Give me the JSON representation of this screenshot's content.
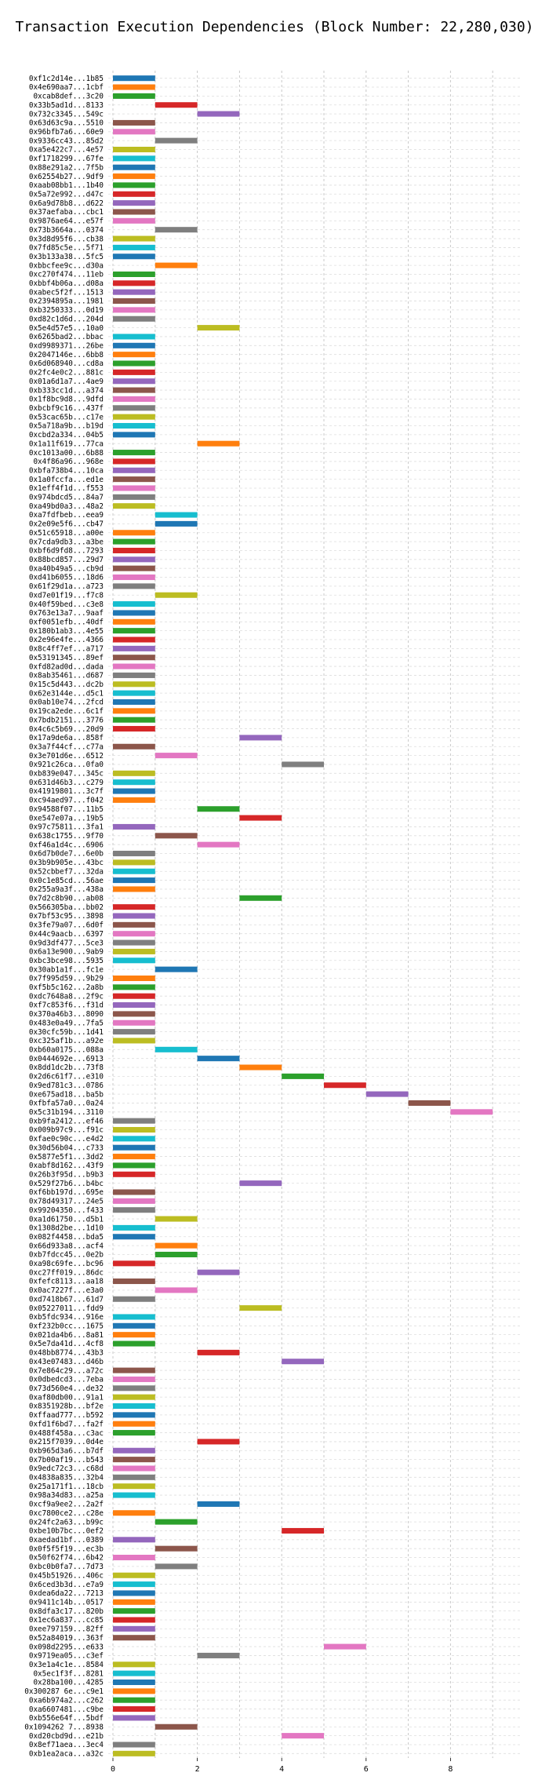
{
  "chart_data": {
    "type": "bar",
    "orientation": "horizontal",
    "subtype": "gantt",
    "title": "Transaction Execution Dependencies (Block Number: 22,280,030)",
    "xlabel": "",
    "ylabel": "",
    "xlim": [
      0,
      9.5
    ],
    "xticks": [
      0,
      2,
      4,
      6,
      8
    ],
    "grid": "x-dashed",
    "palette": [
      "#1f77b4",
      "#ff7f0e",
      "#2ca02c",
      "#d62728",
      "#9467bd",
      "#8c564b",
      "#e377c2",
      "#7f7f7f",
      "#bcbd22",
      "#17becf"
    ],
    "transactions": [
      {
        "label": "0xf1c2d14e...1b85",
        "start": 0
      },
      {
        "label": "0x4e690aa7...1cbf",
        "start": 0
      },
      {
        "label": "0xcab8def...3c20",
        "start": 0
      },
      {
        "label": "0x33b5ad1d...8133",
        "start": 1
      },
      {
        "label": "0x732c3345...549c",
        "start": 2
      },
      {
        "label": "0x63d63c9a...5510",
        "start": 0
      },
      {
        "label": "0x96bfb7a6...60e9",
        "start": 0
      },
      {
        "label": "0x9336cc43...85d2",
        "start": 1
      },
      {
        "label": "0xa5e422c7...4e57",
        "start": 0
      },
      {
        "label": "0xf1718299...67fe",
        "start": 0
      },
      {
        "label": "0x88e291a2...7f5b",
        "start": 0
      },
      {
        "label": "0x62554b27...9df9",
        "start": 0
      },
      {
        "label": "0xaab08bb1...1b40",
        "start": 0
      },
      {
        "label": "0x5a72e992...d47c",
        "start": 0
      },
      {
        "label": "0x6a9d78b8...d622",
        "start": 0
      },
      {
        "label": "0x37aefaba...cbc1",
        "start": 0
      },
      {
        "label": "0x9876ae64...e57f",
        "start": 0
      },
      {
        "label": "0x73b3664a...0374",
        "start": 1
      },
      {
        "label": "0x3d8d95f6...cb38",
        "start": 0
      },
      {
        "label": "0x7fd85c5e...5f71",
        "start": 0
      },
      {
        "label": "0x3b133a38...5fc5",
        "start": 0
      },
      {
        "label": "0xbbcfee9c...d30a",
        "start": 1
      },
      {
        "label": "0xc270f474...11eb",
        "start": 0
      },
      {
        "label": "0xbbf4b06a...d08a",
        "start": 0
      },
      {
        "label": "0xabec5f2f...1513",
        "start": 0
      },
      {
        "label": "0x2394895a...1981",
        "start": 0
      },
      {
        "label": "0xb3250333...0d19",
        "start": 0
      },
      {
        "label": "0xd82c1d6d...204d",
        "start": 0
      },
      {
        "label": "0x5e4d57e5...10a0",
        "start": 2
      },
      {
        "label": "0x6265bad2...bbac",
        "start": 0
      },
      {
        "label": "0xd9989371...26be",
        "start": 0
      },
      {
        "label": "0x2047146e...6bb8",
        "start": 0
      },
      {
        "label": "0x6d068940...cd8a",
        "start": 0
      },
      {
        "label": "0x2fc4e0c2...881c",
        "start": 0
      },
      {
        "label": "0x01a6d1a7...4ae9",
        "start": 0
      },
      {
        "label": "0xb333cc1d...a374",
        "start": 0
      },
      {
        "label": "0x1f8bc9d8...9dfd",
        "start": 0
      },
      {
        "label": "0xbcbf9c16...437f",
        "start": 0
      },
      {
        "label": "0x53cac65b...c17e",
        "start": 0
      },
      {
        "label": "0x5a718a9b...b19d",
        "start": 0
      },
      {
        "label": "0xcbd2a334...04b5",
        "start": 0
      },
      {
        "label": "0x1a11f619...77ca",
        "start": 2
      },
      {
        "label": "0xc1013a00...6b88",
        "start": 0
      },
      {
        "label": "0x4f86a96...968e",
        "start": 0
      },
      {
        "label": "0xbfa738b4...10ca",
        "start": 0
      },
      {
        "label": "0x1a0fccfa...ed1e",
        "start": 0
      },
      {
        "label": "0x1eff4f1d...f553",
        "start": 0
      },
      {
        "label": "0x974bdcd5...84a7",
        "start": 0
      },
      {
        "label": "0xa49bd0a3...48a2",
        "start": 0
      },
      {
        "label": "0xa7fdfbeb...eea9",
        "start": 1
      },
      {
        "label": "0x2e09e5f6...cb47",
        "start": 1
      },
      {
        "label": "0x51c65918...a00e",
        "start": 0
      },
      {
        "label": "0x7cda9db3...a3be",
        "start": 0
      },
      {
        "label": "0xbf6d9fd8...7293",
        "start": 0
      },
      {
        "label": "0x88bcd857...29d7",
        "start": 0
      },
      {
        "label": "0xa40b49a5...cb9d",
        "start": 0
      },
      {
        "label": "0xd41b6055...18d6",
        "start": 0
      },
      {
        "label": "0x61f29d1a...a723",
        "start": 0
      },
      {
        "label": "0xd7e01f19...f7c8",
        "start": 1
      },
      {
        "label": "0x40f59bed...c3e8",
        "start": 0
      },
      {
        "label": "0x763e13a7...9aaf",
        "start": 0
      },
      {
        "label": "0xf0051efb...40df",
        "start": 0
      },
      {
        "label": "0x180b1ab3...4e55",
        "start": 0
      },
      {
        "label": "0x2e96e4fe...4366",
        "start": 0
      },
      {
        "label": "0x8c4ff7ef...a717",
        "start": 0
      },
      {
        "label": "0x53191345...89ef",
        "start": 0
      },
      {
        "label": "0xfd82ad0d...dada",
        "start": 0
      },
      {
        "label": "0x8ab35461...d687",
        "start": 0
      },
      {
        "label": "0x15c5d443...dc2b",
        "start": 0
      },
      {
        "label": "0x62e3144e...d5c1",
        "start": 0
      },
      {
        "label": "0x0ab10e74...2fcd",
        "start": 0
      },
      {
        "label": "0x19ca2ede...6c1f",
        "start": 0
      },
      {
        "label": "0x7bdb2151...3776",
        "start": 0
      },
      {
        "label": "0x4c6c5b69...20d9",
        "start": 0
      },
      {
        "label": "0x17a9de6a...858f",
        "start": 3
      },
      {
        "label": "0x3a7f44cf...c77a",
        "start": 0
      },
      {
        "label": "0x3e701d6e...6512",
        "start": 1
      },
      {
        "label": "0x921c26ca...0fa0",
        "start": 4
      },
      {
        "label": "0xb839e047...345c",
        "start": 0
      },
      {
        "label": "0x631d46b3...c279",
        "start": 0
      },
      {
        "label": "0x41919801...3c7f",
        "start": 0
      },
      {
        "label": "0xc94aed97...f042",
        "start": 0
      },
      {
        "label": "0x94588f07...11b5",
        "start": 2
      },
      {
        "label": "0xe547e07a...19b5",
        "start": 3
      },
      {
        "label": "0x97c75811...3fa1",
        "start": 0
      },
      {
        "label": "0x638c1755...9f70",
        "start": 1
      },
      {
        "label": "0xf46a1d4c...6906",
        "start": 2
      },
      {
        "label": "0x6d7b0de7...6e0b",
        "start": 0
      },
      {
        "label": "0x3b9b905e...43bc",
        "start": 0
      },
      {
        "label": "0x52cbbef7...32da",
        "start": 0
      },
      {
        "label": "0x0c1e85cd...56ae",
        "start": 0
      },
      {
        "label": "0x255a9a3f...438a",
        "start": 0
      },
      {
        "label": "0x7d2c8b90...ab08",
        "start": 3
      },
      {
        "label": "0x566305ba...bb02",
        "start": 0
      },
      {
        "label": "0x7bf53c95...3898",
        "start": 0
      },
      {
        "label": "0x3fe79a07...6d0f",
        "start": 0
      },
      {
        "label": "0x44c9aacb...6397",
        "start": 0
      },
      {
        "label": "0x9d3df477...5ce3",
        "start": 0
      },
      {
        "label": "0x6a13e900...9ab9",
        "start": 0
      },
      {
        "label": "0xbc3bce98...5935",
        "start": 0
      },
      {
        "label": "0x30ab1a1f...fc1e",
        "start": 1
      },
      {
        "label": "0x7f995d59...9b29",
        "start": 0
      },
      {
        "label": "0xf5b5c162...2a8b",
        "start": 0
      },
      {
        "label": "0xdc7648a8...2f9c",
        "start": 0
      },
      {
        "label": "0xf7c853f6...f31d",
        "start": 0
      },
      {
        "label": "0x370a46b3...8090",
        "start": 0
      },
      {
        "label": "0x483e0a49...7fa5",
        "start": 0
      },
      {
        "label": "0x30cfc59b...1d41",
        "start": 0
      },
      {
        "label": "0xc325af1b...a92e",
        "start": 0
      },
      {
        "label": "0xb60a0175...088a",
        "start": 1
      },
      {
        "label": "0x0444692e...6913",
        "start": 2
      },
      {
        "label": "0x8dd1dc2b...73f8",
        "start": 3
      },
      {
        "label": "0x2d6c61f7...e310",
        "start": 4
      },
      {
        "label": "0x9ed781c3...0786",
        "start": 5
      },
      {
        "label": "0xe675ad18...ba5b",
        "start": 6
      },
      {
        "label": "0xfbfa57a0...0a24",
        "start": 7
      },
      {
        "label": "0x5c31b194...3110",
        "start": 8
      },
      {
        "label": "0xb9fa2412...ef46",
        "start": 0
      },
      {
        "label": "0x009b97c9...f91c",
        "start": 0
      },
      {
        "label": "0xfae0c90c...e4d2",
        "start": 0
      },
      {
        "label": "0x30d56b04...c733",
        "start": 0
      },
      {
        "label": "0x5877e5f1...3dd2",
        "start": 0
      },
      {
        "label": "0xabf8d162...43f9",
        "start": 0
      },
      {
        "label": "0x26b3f95d...b9b3",
        "start": 0
      },
      {
        "label": "0x529f27b6...b4bc",
        "start": 3
      },
      {
        "label": "0xf6bb197d...695e",
        "start": 0
      },
      {
        "label": "0x78d49317...24e5",
        "start": 0
      },
      {
        "label": "0x99204350...f433",
        "start": 0
      },
      {
        "label": "0xa1d61750...d5b1",
        "start": 1
      },
      {
        "label": "0x1308d2be...1d10",
        "start": 0
      },
      {
        "label": "0x082f4458...bda5",
        "start": 0
      },
      {
        "label": "0x66d933a8...acf4",
        "start": 1
      },
      {
        "label": "0xb7fdcc45...0e2b",
        "start": 1
      },
      {
        "label": "0xa98c69fe...bc96",
        "start": 0
      },
      {
        "label": "0xc27ff019...86dc",
        "start": 2
      },
      {
        "label": "0xfefc8113...aa18",
        "start": 0
      },
      {
        "label": "0x0ac7227f...e3a0",
        "start": 1
      },
      {
        "label": "0xd7418b67...61d7",
        "start": 0
      },
      {
        "label": "0x05227011...fdd9",
        "start": 3
      },
      {
        "label": "0xb5fdc934...916e",
        "start": 0
      },
      {
        "label": "0xf232b0cc...1675",
        "start": 0
      },
      {
        "label": "0x021da4b6...8a81",
        "start": 0
      },
      {
        "label": "0x5e7da41d...4cf8",
        "start": 0
      },
      {
        "label": "0x48bb8774...43b3",
        "start": 2
      },
      {
        "label": "0x43e07483...d46b",
        "start": 4
      },
      {
        "label": "0x7e864c29...a72c",
        "start": 0
      },
      {
        "label": "0x0dbedcd3...7eba",
        "start": 0
      },
      {
        "label": "0x73d560e4...de32",
        "start": 0
      },
      {
        "label": "0xaf80db00...91a1",
        "start": 0
      },
      {
        "label": "0x8351928b...bf2e",
        "start": 0
      },
      {
        "label": "0xffaad777...b592",
        "start": 0
      },
      {
        "label": "0xfd1f6bd7...fa2f",
        "start": 0
      },
      {
        "label": "0x488f458a...c3ac",
        "start": 0
      },
      {
        "label": "0x215f7039...0d4e",
        "start": 2
      },
      {
        "label": "0xb965d3a6...b7df",
        "start": 0
      },
      {
        "label": "0x7b00af19...b543",
        "start": 0
      },
      {
        "label": "0x9edc72c3...c68d",
        "start": 0
      },
      {
        "label": "0x4838a835...32b4",
        "start": 0
      },
      {
        "label": "0x25a171f1...18cb",
        "start": 0
      },
      {
        "label": "0x98a34d83...a25a",
        "start": 0
      },
      {
        "label": "0xcf9a9ee2...2a2f",
        "start": 2
      },
      {
        "label": "0xc7800ce2...c28e",
        "start": 0
      },
      {
        "label": "0x24fc2a63...b99c",
        "start": 1
      },
      {
        "label": "0xbe10b7bc...0ef2",
        "start": 4
      },
      {
        "label": "0xaedad1bf...0389",
        "start": 0
      },
      {
        "label": "0x0f5f5f19...ec3b",
        "start": 1
      },
      {
        "label": "0x50f62f74...6b42",
        "start": 0
      },
      {
        "label": "0xbc0b0fa7...7d73",
        "start": 1
      },
      {
        "label": "0x45b51926...406c",
        "start": 0
      },
      {
        "label": "0x6ced3b3d...e7a9",
        "start": 0
      },
      {
        "label": "0xdea6da22...7213",
        "start": 0
      },
      {
        "label": "0x9411c14b...0517",
        "start": 0
      },
      {
        "label": "0x8dfa3c17...820b",
        "start": 0
      },
      {
        "label": "0x1ec6a837...cc85",
        "start": 0
      },
      {
        "label": "0xee797159...82ff",
        "start": 0
      },
      {
        "label": "0x52a84019...363f",
        "start": 0
      },
      {
        "label": "0x098d2295...e633",
        "start": 5
      },
      {
        "label": "0x9719ea05...c3ef",
        "start": 2
      },
      {
        "label": "0x3e1a4c1e...8584",
        "start": 0
      },
      {
        "label": "0x5ec1f3f...8281",
        "start": 0
      },
      {
        "label": "0x28ba100...4285",
        "start": 0
      },
      {
        "label": "0x300287 6e...c9e1",
        "start": 0
      },
      {
        "label": "0xa6b974a2...c262",
        "start": 0
      },
      {
        "label": "0xa6607481...c9be",
        "start": 0
      },
      {
        "label": "0xb556e64f...5bdf",
        "start": 0
      },
      {
        "label": "0x1094262 7...8938",
        "start": 1
      },
      {
        "label": "0xd20cbd9d...e21b",
        "start": 4
      },
      {
        "label": "0x8ef71aea...3ec4",
        "start": 0
      },
      {
        "label": "0xb1ea2aca...a32c",
        "start": 0
      }
    ]
  }
}
